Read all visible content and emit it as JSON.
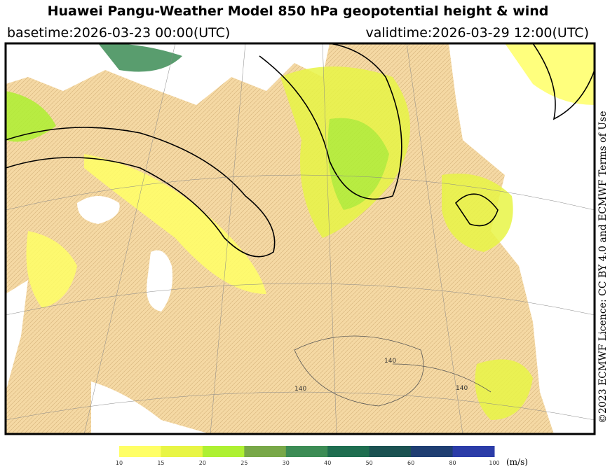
{
  "header": {
    "title": "Huawei Pangu-Weather Model 850 hPa geopotential height & wind",
    "basetime": "basetime:2026-03-23 00:00(UTC)",
    "validtime": "validtime:2026-03-29 12:00(UTC)"
  },
  "map": {
    "contour_labels": [
      "140",
      "140",
      "140"
    ]
  },
  "colorbar": {
    "ticks": [
      10,
      15,
      20,
      25,
      30,
      40,
      50,
      60,
      80,
      100
    ],
    "colors": [
      "#ffff66",
      "#e8f545",
      "#aef032",
      "#78a848",
      "#3c8c55",
      "#1f6e50",
      "#1b5252",
      "#1f3e72",
      "#2b3ca8"
    ],
    "unit": "(m/s)"
  },
  "credit": "©2023 ECMWF Licence: CC BY 4.0 and ECMWF Terms of Use"
}
